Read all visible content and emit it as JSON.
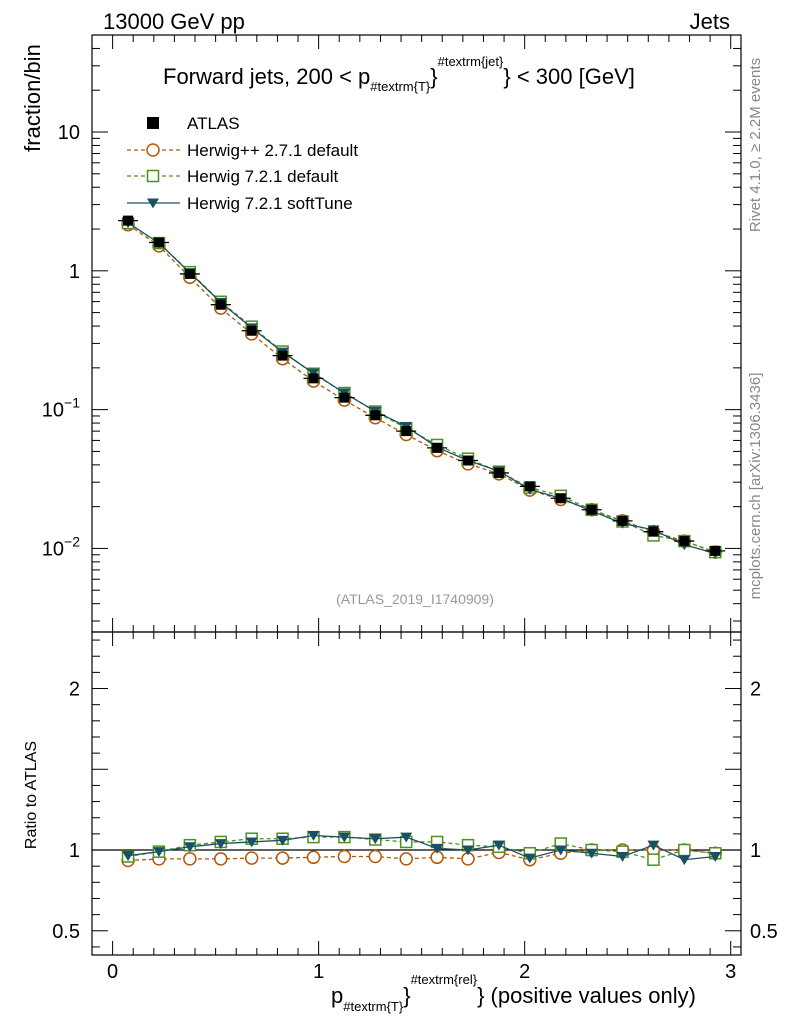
{
  "header": {
    "left": "13000 GeV pp",
    "right": "Jets"
  },
  "side": {
    "rivet": "Rivet 4.1.0, ≥ 2.2M events",
    "mcplots": "mcplots.cern.ch [arXiv:1306.3436]"
  },
  "watermark": "(ATLAS_2019_I1740909)",
  "chart_data": {
    "type": "line",
    "title": "Forward jets, 200 < p_{#textrm{T}}^{#textrm{jet}} < 300 [GeV]",
    "title_parts": {
      "pre": "Forward jets, 200 < p",
      "sub": "#textrm{T}",
      "sup": "#textrm{jet}",
      "post": " < 300 [GeV]"
    },
    "ylabel": "fraction/bin",
    "ratio_ylabel": "Ratio to ATLAS",
    "xlabel_parts": {
      "pre": "p",
      "sub": "#textrm{T}",
      "sup": "#textrm{rel}",
      "post": " (positive values only)"
    },
    "xlim": [
      -0.1,
      3.05
    ],
    "ylim": [
      0.0025,
      50
    ],
    "ratio_ylim": [
      0.35,
      2.35
    ],
    "x_ticks": [
      "0",
      "1",
      "2",
      "3"
    ],
    "y_ticks": [
      {
        "v": 10,
        "base": "10",
        "exp": ""
      },
      {
        "v": 1,
        "base": "1",
        "exp": ""
      },
      {
        "v": 0.1,
        "base": "10",
        "exp": "−1"
      },
      {
        "v": 0.01,
        "base": "10",
        "exp": "−2"
      }
    ],
    "ratio_ticks": [
      "0.5",
      "1",
      "2"
    ],
    "x": [
      0.075,
      0.225,
      0.375,
      0.525,
      0.675,
      0.825,
      0.975,
      1.125,
      1.275,
      1.425,
      1.575,
      1.725,
      1.875,
      2.025,
      2.175,
      2.325,
      2.475,
      2.625,
      2.775,
      2.925
    ],
    "series": [
      {
        "name": "ATLAS",
        "style": "data",
        "color": "#000000",
        "values": [
          2.3,
          1.6,
          0.95,
          0.57,
          0.37,
          0.245,
          0.168,
          0.122,
          0.091,
          0.07,
          0.053,
          0.043,
          0.035,
          0.028,
          0.023,
          0.019,
          0.0158,
          0.0132,
          0.0113,
          0.0096
        ]
      },
      {
        "name": "Herwig++ 2.7.1 default",
        "style": "open-circle-dashed",
        "color": "#b35806",
        "ratio": [
          0.935,
          0.945,
          0.945,
          0.945,
          0.95,
          0.95,
          0.955,
          0.96,
          0.96,
          0.945,
          0.955,
          0.945,
          0.985,
          0.94,
          0.98,
          1.0,
          1.0,
          1.0,
          1.0,
          0.98
        ]
      },
      {
        "name": "Herwig 7.2.1 default",
        "style": "open-square-dashed",
        "color": "#4d9221",
        "ratio": [
          0.96,
          0.99,
          1.03,
          1.05,
          1.07,
          1.07,
          1.08,
          1.08,
          1.065,
          1.05,
          1.05,
          1.03,
          1.02,
          0.98,
          1.04,
          1.0,
          0.99,
          0.94,
          1.0,
          0.98
        ]
      },
      {
        "name": "Herwig 7.2.1 softTune",
        "style": "filled-triangle-solid",
        "color": "#1b4f63",
        "ratio": [
          0.965,
          0.99,
          1.02,
          1.04,
          1.05,
          1.06,
          1.09,
          1.08,
          1.07,
          1.08,
          1.01,
          1.0,
          1.03,
          0.95,
          1.0,
          0.98,
          0.96,
          1.03,
          0.94,
          0.96
        ]
      }
    ]
  }
}
